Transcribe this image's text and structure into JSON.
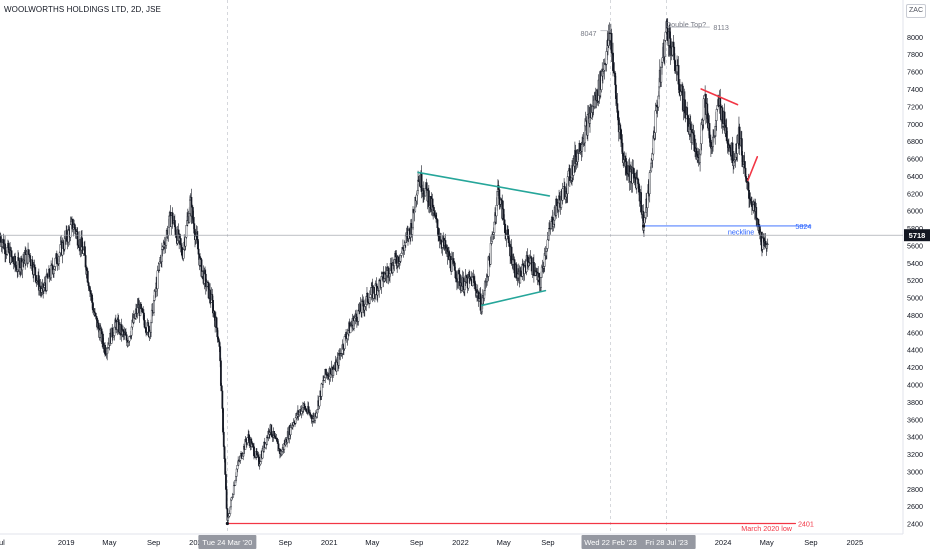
{
  "header": {
    "title": "WOOLWORTHS HOLDINGS LTD, 2D, JSE",
    "currency": "ZAC"
  },
  "chart_data": {
    "type": "candlestick",
    "ylim": [
      2280,
      8240
    ],
    "y_ticks": [
      2400,
      2600,
      2800,
      3000,
      3200,
      3400,
      3600,
      3800,
      4000,
      4200,
      4400,
      4600,
      4800,
      5000,
      5200,
      5400,
      5600,
      5800,
      6000,
      6200,
      6400,
      6600,
      6800,
      7000,
      7200,
      7400,
      7600,
      7800,
      8000
    ],
    "x_range": [
      "2018-07-01",
      "2025-05-15"
    ],
    "x_ticks": [
      {
        "date": "2018-07-01",
        "label": "Jul"
      },
      {
        "date": "2019-01-01",
        "label": "2019"
      },
      {
        "date": "2019-05-01",
        "label": "May"
      },
      {
        "date": "2019-09-01",
        "label": "Sep"
      },
      {
        "date": "2020-01-01",
        "label": "2020"
      },
      {
        "date": "2020-09-01",
        "label": "Sep"
      },
      {
        "date": "2021-01-01",
        "label": "2021"
      },
      {
        "date": "2021-05-01",
        "label": "May"
      },
      {
        "date": "2021-09-01",
        "label": "Sep"
      },
      {
        "date": "2022-01-01",
        "label": "2022"
      },
      {
        "date": "2022-05-01",
        "label": "May"
      },
      {
        "date": "2022-09-01",
        "label": "Sep"
      },
      {
        "date": "2023-05-01",
        "label": "y"
      },
      {
        "date": "2024-01-01",
        "label": "2024"
      },
      {
        "date": "2024-05-01",
        "label": "May"
      },
      {
        "date": "2024-09-01",
        "label": "Sep"
      },
      {
        "date": "2025-01-01",
        "label": "2025"
      }
    ],
    "date_markers": [
      {
        "date": "2020-03-24",
        "label": "Tue 24 Mar '20"
      },
      {
        "date": "2023-02-22",
        "label": "Wed 22 Feb '23"
      },
      {
        "date": "2023-07-28",
        "label": "Fri 28 Jul '23"
      }
    ],
    "price_path": [
      [
        "2018-07-01",
        5700
      ],
      [
        "2018-08-15",
        5350
      ],
      [
        "2018-09-20",
        5500
      ],
      [
        "2018-10-25",
        5050
      ],
      [
        "2018-12-01",
        5400
      ],
      [
        "2019-01-20",
        5850
      ],
      [
        "2019-02-20",
        5500
      ],
      [
        "2019-03-20",
        4800
      ],
      [
        "2019-04-20",
        4400
      ],
      [
        "2019-05-20",
        4700
      ],
      [
        "2019-06-20",
        4500
      ],
      [
        "2019-07-20",
        4900
      ],
      [
        "2019-08-20",
        4600
      ],
      [
        "2019-09-20",
        5450
      ],
      [
        "2019-10-20",
        5950
      ],
      [
        "2019-11-20",
        5500
      ],
      [
        "2019-12-12",
        6100
      ],
      [
        "2020-01-10",
        5350
      ],
      [
        "2020-02-10",
        4950
      ],
      [
        "2020-03-01",
        4500
      ],
      [
        "2020-03-24",
        2401
      ],
      [
        "2020-04-20",
        3050
      ],
      [
        "2020-05-20",
        3400
      ],
      [
        "2020-06-20",
        3100
      ],
      [
        "2020-07-20",
        3500
      ],
      [
        "2020-08-20",
        3200
      ],
      [
        "2020-09-20",
        3550
      ],
      [
        "2020-10-20",
        3750
      ],
      [
        "2020-11-20",
        3600
      ],
      [
        "2020-12-20",
        4100
      ],
      [
        "2021-01-20",
        4200
      ],
      [
        "2021-02-20",
        4600
      ],
      [
        "2021-03-20",
        4800
      ],
      [
        "2021-04-20",
        5000
      ],
      [
        "2021-05-20",
        5150
      ],
      [
        "2021-06-20",
        5350
      ],
      [
        "2021-07-20",
        5500
      ],
      [
        "2021-08-20",
        5850
      ],
      [
        "2021-09-05",
        6400
      ],
      [
        "2021-10-05",
        6150
      ],
      [
        "2021-11-05",
        5700
      ],
      [
        "2021-12-05",
        5400
      ],
      [
        "2022-01-05",
        5150
      ],
      [
        "2022-02-05",
        5200
      ],
      [
        "2022-03-01",
        4900
      ],
      [
        "2022-03-25",
        5500
      ],
      [
        "2022-04-15",
        6250
      ],
      [
        "2022-05-10",
        5700
      ],
      [
        "2022-06-10",
        5200
      ],
      [
        "2022-07-10",
        5450
      ],
      [
        "2022-08-10",
        5150
      ],
      [
        "2022-08-25",
        5550
      ],
      [
        "2022-09-20",
        6000
      ],
      [
        "2022-10-20",
        6250
      ],
      [
        "2022-11-20",
        6650
      ],
      [
        "2022-12-20",
        7000
      ],
      [
        "2023-01-20",
        7400
      ],
      [
        "2023-02-10",
        7800
      ],
      [
        "2023-02-22",
        8047
      ],
      [
        "2023-03-10",
        7250
      ],
      [
        "2023-03-30",
        6600
      ],
      [
        "2023-04-20",
        6400
      ],
      [
        "2023-05-10",
        6350
      ],
      [
        "2023-05-25",
        5824
      ],
      [
        "2023-06-10",
        6300
      ],
      [
        "2023-06-25",
        7000
      ],
      [
        "2023-07-15",
        7700
      ],
      [
        "2023-07-28",
        8113
      ],
      [
        "2023-08-20",
        7700
      ],
      [
        "2023-09-15",
        7200
      ],
      [
        "2023-10-05",
        6850
      ],
      [
        "2023-10-25",
        6550
      ],
      [
        "2023-11-10",
        7350
      ],
      [
        "2023-12-01",
        6700
      ],
      [
        "2023-12-20",
        7250
      ],
      [
        "2024-01-10",
        6900
      ],
      [
        "2024-01-30",
        6600
      ],
      [
        "2024-02-15",
        6900
      ],
      [
        "2024-03-05",
        6300
      ],
      [
        "2024-03-25",
        6050
      ],
      [
        "2024-04-10",
        5750
      ],
      [
        "2024-04-25",
        5550
      ],
      [
        "2024-05-05",
        5718
      ]
    ],
    "price_levels": [
      {
        "value": 5718,
        "label": "5718"
      },
      {
        "value": 5824,
        "label": "5824"
      },
      {
        "value": 2401,
        "label": "2401"
      }
    ],
    "annotations": [
      {
        "text": "8047",
        "date": "2023-02-22",
        "value": 8047
      },
      {
        "text": "Double Top?",
        "date": "2023-09-20",
        "value": 8150
      },
      {
        "text": "8113",
        "date": "2023-12-05",
        "value": 8113
      },
      {
        "text": "neckline",
        "date": "2024-02-20",
        "value": 5760
      },
      {
        "text": "March 2020 low",
        "date": "2024-05-01",
        "value": 2350
      }
    ],
    "trendlines": [
      {
        "name": "upper-triangle",
        "color": "#26a69a",
        "from": [
          "2021-09-05",
          6440
        ],
        "to": [
          "2022-09-05",
          6170
        ]
      },
      {
        "name": "lower-triangle",
        "color": "#26a69a",
        "from": [
          "2022-03-01",
          4910
        ],
        "to": [
          "2022-08-25",
          5080
        ]
      },
      {
        "name": "red-top",
        "color": "#f23645",
        "from": [
          "2023-11-01",
          7400
        ],
        "to": [
          "2024-02-10",
          7220
        ]
      },
      {
        "name": "red-bottom",
        "color": "#f23645",
        "from": [
          "2024-03-10",
          6350
        ],
        "to": [
          "2024-04-05",
          6620
        ]
      },
      {
        "name": "neckline",
        "color": "#2962ff",
        "from": [
          "2023-05-25",
          5824
        ],
        "to": [
          "2024-09-01",
          5824
        ]
      },
      {
        "name": "march-2020-low",
        "color": "#f23645",
        "from": [
          "2020-03-24",
          2401
        ],
        "to": [
          "2024-07-20",
          2401
        ]
      }
    ],
    "colors": {
      "candle": "#131722",
      "axis_text": "#131722",
      "current_price_bg": "#131722",
      "marker_bg": "#9598a1",
      "teal": "#26a69a",
      "red": "#f23645",
      "neckline": "#2962ff"
    }
  }
}
